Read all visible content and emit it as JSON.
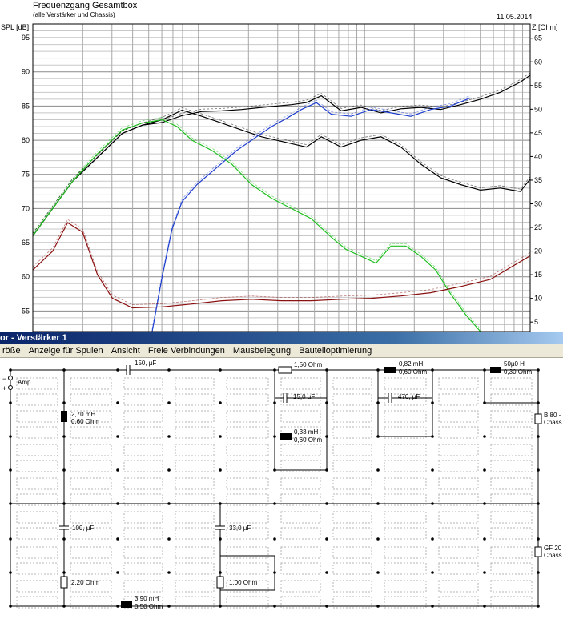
{
  "chart": {
    "title": "Frequenzgang Gesamtbox",
    "subtitle": "(alle Verstärker und Chassis)",
    "date": "11.05.2014",
    "left_axis_label": "SPL [dB]",
    "right_axis_label": "Z [Ohm]",
    "left_ticks": [
      "95",
      "90",
      "85",
      "80",
      "75",
      "70",
      "65",
      "60",
      "55"
    ],
    "right_ticks": [
      "65",
      "60",
      "55",
      "50",
      "45",
      "40",
      "35",
      "30",
      "25",
      "20",
      "15",
      "10",
      "5"
    ],
    "colors": {
      "total": "#000000",
      "tweeter": "#1f3fd0",
      "woofer": "#1fbf1f",
      "impedance": "#8b1010",
      "grid": "#a0a0a0"
    }
  },
  "chart_data": {
    "type": "line",
    "title": "Frequenzgang Gesamtbox",
    "subtitle": "(alle Verstärker und Chassis)",
    "xlabel": "",
    "ylabel": "SPL [dB]",
    "y2label": "Z [Ohm]",
    "ylim": [
      52,
      97
    ],
    "y2lim": [
      3,
      68
    ],
    "x_scale": "log",
    "grid": true,
    "series": [
      {
        "name": "",
        "axis": "left",
        "color": "#000000",
        "style": "solid",
        "x": [
          0,
          4,
          8,
          13,
          18,
          22,
          26,
          30,
          34,
          38,
          42,
          46,
          52,
          55,
          58,
          62,
          66,
          70,
          74,
          78,
          82,
          86,
          90,
          94,
          98,
          100
        ],
        "y": [
          66,
          70,
          74,
          77.5,
          81,
          82.2,
          82.6,
          83.6,
          84.2,
          84.3,
          84.5,
          84.8,
          85.2,
          85.5,
          86.5,
          84.3,
          84.8,
          84.0,
          84.6,
          84.8,
          84.5,
          85.2,
          86,
          87,
          88.5,
          89.5
        ]
      },
      {
        "name": "",
        "axis": "left",
        "color": "#000000",
        "style": "solid",
        "x": [
          0,
          4,
          8,
          13,
          18,
          22,
          26,
          30,
          34,
          38,
          42,
          46,
          52,
          55,
          58,
          62,
          66,
          70,
          74,
          78,
          82,
          86,
          90,
          94,
          98,
          100
        ],
        "y": [
          66,
          70,
          74,
          77.5,
          81,
          82.2,
          83,
          84.4,
          83.5,
          82.5,
          81.5,
          80.5,
          79.5,
          79,
          80.5,
          79,
          80,
          80.5,
          79,
          76.5,
          74.5,
          73.5,
          72.7,
          73,
          72.5,
          74.3
        ]
      },
      {
        "name": "",
        "axis": "left",
        "color": "#1f3fd0",
        "style": "solid",
        "x": [
          24,
          26,
          28,
          30,
          33,
          37,
          41,
          45,
          48,
          51,
          54,
          57,
          60,
          64,
          68,
          72,
          76,
          80,
          84,
          88
        ],
        "y": [
          52,
          60,
          67,
          71,
          73.5,
          76,
          78.5,
          80.5,
          82,
          83.2,
          84.5,
          85.5,
          83.8,
          83.5,
          84.5,
          84.0,
          83.5,
          84.5,
          85,
          86.2
        ]
      },
      {
        "name": "",
        "axis": "left",
        "color": "#1fbf1f",
        "style": "solid",
        "x": [
          0,
          4,
          8,
          13,
          18,
          22,
          26,
          29,
          32,
          36,
          40,
          44,
          48,
          52,
          56,
          60,
          63,
          66,
          69,
          72,
          75,
          78,
          81,
          84,
          87,
          90
        ],
        "y": [
          66,
          70,
          74,
          78,
          81.5,
          82.5,
          83,
          82,
          80,
          78.5,
          76.5,
          73.5,
          71.5,
          70,
          68.5,
          65.8,
          64,
          63,
          62,
          64.5,
          64.5,
          63,
          61,
          57.5,
          54.5,
          52
        ]
      },
      {
        "name": "",
        "axis": "right",
        "color": "#8b1010",
        "style": "solid",
        "x": [
          0,
          4,
          7,
          10,
          13,
          16,
          20,
          26,
          32,
          38,
          44,
          50,
          56,
          62,
          68,
          74,
          80,
          86,
          92,
          96,
          100
        ],
        "y": [
          16,
          20,
          26,
          24,
          15,
          10,
          8,
          8.2,
          8.8,
          9.5,
          9.8,
          9.5,
          9.5,
          9.8,
          10,
          10.5,
          11.2,
          12.5,
          14,
          16.5,
          19
        ]
      }
    ]
  },
  "editor": {
    "title": "or - Verstärker 1",
    "menu": [
      "röße",
      "Anzeige für Spulen",
      "Ansicht",
      "Freie Verbindungen",
      "Mausbelegung",
      "Bauteiloptimierung"
    ],
    "amp_label": "Amp",
    "minus": "−",
    "plus": "+",
    "components": {
      "c1": "150, µF",
      "r1": "1,50 Ohm",
      "l1_a": "0,82 mH",
      "l1_b": "0,60 Ohm",
      "l2_a": "50µ0 H",
      "l2_b": "0,30 Ohm",
      "l3_a": "2,70 mH",
      "l3_b": "0,60 Ohm",
      "c2": "15,0 µF",
      "c3": "470, µF",
      "l4_a": "0,33 mH",
      "l4_b": "0,60 Ohm",
      "spk1_a": "B 80 -",
      "spk1_b": "Chass",
      "c4": "100, µF",
      "c5": "33,0 µF",
      "spk2_a": "GF 20",
      "spk2_b": "Chass",
      "r2": "2,20 Ohm",
      "r3": "1,00 Ohm",
      "l5_a": "3,90 mH",
      "l5_b": "0,50 Ohm"
    }
  }
}
